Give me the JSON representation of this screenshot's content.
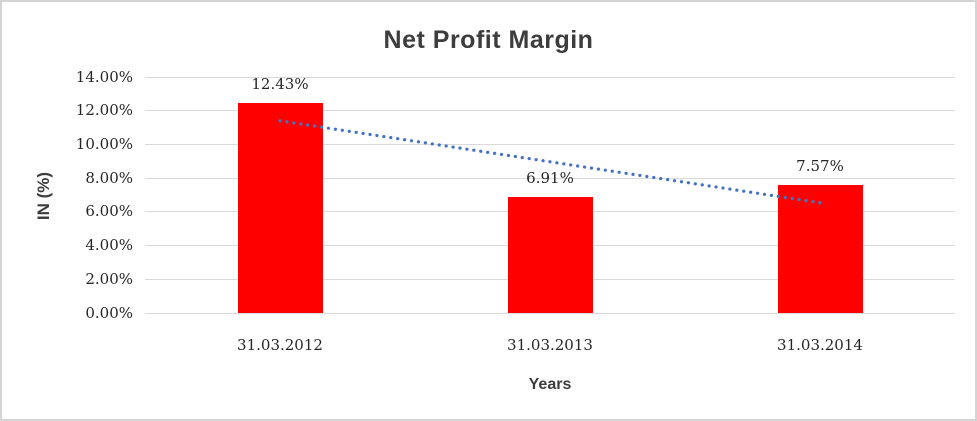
{
  "chart_data": {
    "type": "bar",
    "title": "Net Profit Margin",
    "xlabel": "Years",
    "ylabel": "IN (%)",
    "categories": [
      "31.03.2012",
      "31.03.2013",
      "31.03.2014"
    ],
    "values": [
      12.43,
      6.91,
      7.57
    ],
    "data_labels": [
      "12.43%",
      "6.91%",
      "7.57%"
    ],
    "y_ticks": [
      "0.00%",
      "2.00%",
      "4.00%",
      "6.00%",
      "8.00%",
      "10.00%",
      "12.00%",
      "14.00%"
    ],
    "ylim": [
      0,
      14
    ],
    "grid": true,
    "legend": "none",
    "bar_color": "#ff0000",
    "gridline_color": "#d9d9d9",
    "trendline": {
      "type": "linear",
      "style": "dotted",
      "color": "#4472c4",
      "start_value": 11.4,
      "end_value": 6.54
    }
  }
}
